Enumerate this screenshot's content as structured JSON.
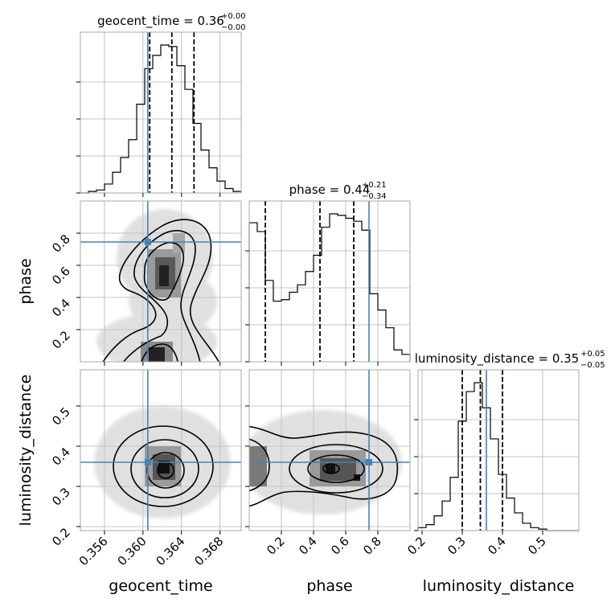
{
  "chart_data": {
    "type": "corner",
    "parameters": [
      "geocent_time",
      "phase",
      "luminosity_distance"
    ],
    "axis_labels": [
      "geocent_time",
      "phase",
      "luminosity_distance"
    ],
    "ranges": [
      [
        0.3535,
        0.3702
      ],
      [
        0.0,
        1.0
      ],
      [
        0.19,
        0.59
      ]
    ],
    "truths": [
      0.3605,
      0.745,
      0.36
    ],
    "truth_color": "#4682b4",
    "grid": true,
    "titles": [
      {
        "name": "geocent_time",
        "median": "0.36",
        "plus": "+0.00",
        "minus": "−0.00",
        "quantiles": [
          0.3607,
          0.363,
          0.3653
        ]
      },
      {
        "name": "phase",
        "median": "0.44",
        "plus": "+0.21",
        "minus": "−0.34",
        "quantiles": [
          0.1,
          0.44,
          0.65
        ]
      },
      {
        "name": "luminosity_distance",
        "median": "0.35",
        "plus": "+0.05",
        "minus": "−0.05",
        "quantiles": [
          0.3,
          0.345,
          0.4
        ]
      }
    ],
    "ticks": [
      {
        "values": [
          0.356,
          0.36,
          0.364,
          0.368
        ],
        "labels": [
          "0.356",
          "0.360",
          "0.364",
          "0.368"
        ]
      },
      {
        "values": [
          0.2,
          0.4,
          0.6,
          0.8
        ],
        "labels": [
          "0.2",
          "0.4",
          "0.6",
          "0.8"
        ]
      },
      {
        "values": [
          0.2,
          0.3,
          0.4,
          0.5
        ],
        "labels": [
          "0.2",
          "0.3",
          "0.4",
          "0.5"
        ]
      }
    ],
    "histograms": [
      {
        "parameter": "geocent_time",
        "bins": 20,
        "counts": [
          0.0,
          0.01,
          0.02,
          0.06,
          0.14,
          0.24,
          0.36,
          0.6,
          0.84,
          0.93,
          1.0,
          0.99,
          0.86,
          0.7,
          0.47,
          0.29,
          0.17,
          0.08,
          0.03,
          0.01
        ]
      },
      {
        "parameter": "phase",
        "bins": 20,
        "counts": [
          0.94,
          0.88,
          0.55,
          0.41,
          0.42,
          0.47,
          0.52,
          0.61,
          0.72,
          0.91,
          1.0,
          0.99,
          0.97,
          0.95,
          0.89,
          0.46,
          0.35,
          0.23,
          0.08,
          0.05
        ]
      },
      {
        "parameter": "luminosity_distance",
        "bins": 20,
        "counts": [
          0.02,
          0.04,
          0.1,
          0.2,
          0.36,
          0.74,
          0.94,
          1.0,
          0.83,
          0.62,
          0.38,
          0.22,
          0.12,
          0.05,
          0.02,
          0.01,
          0.0,
          0.0,
          0.0,
          0.0
        ]
      }
    ]
  }
}
